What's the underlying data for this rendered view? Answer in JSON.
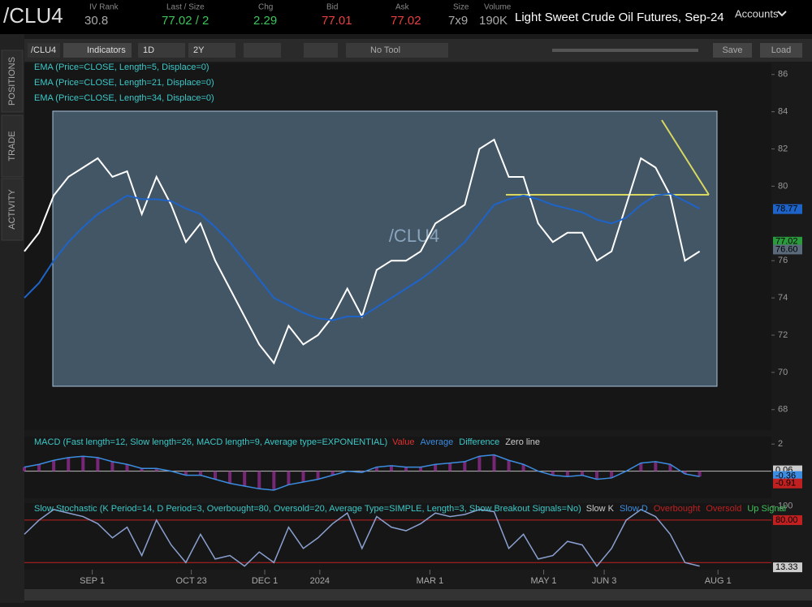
{
  "header": {
    "symbol": "/CLU4",
    "fields": [
      {
        "label": "IV Rank",
        "value": "30.8",
        "color": "#aaaaaa"
      },
      {
        "label": "Last / Size",
        "value": "77.02 / 2",
        "color": "#3ec45a"
      },
      {
        "label": "Chg",
        "value": "2.29",
        "color": "#3ec45a"
      },
      {
        "label": "Bid",
        "value": "77.01",
        "color": "#e84040"
      },
      {
        "label": "Ask",
        "value": "77.02",
        "color": "#e84040"
      },
      {
        "label": "Size",
        "value": "7x9",
        "color": "#aaaaaa"
      },
      {
        "label": "Volume",
        "value": "190K",
        "color": "#aaaaaa"
      }
    ],
    "description": "Light Sweet Crude Oil Futures, Sep-24",
    "accounts": "Accounts"
  },
  "sidebar": [
    "POSITIONS",
    "TRADE",
    "ACTIVITY"
  ],
  "toolbar": {
    "symbol": "/CLU4",
    "indicators": "Indicators",
    "aggregation": "1D",
    "period": "2Y",
    "tool": "No Tool",
    "save": "Save",
    "load": "Load"
  },
  "chart_data": {
    "type": "line",
    "watermark": "/CLU4",
    "x": [
      0,
      8,
      16,
      24,
      32,
      40,
      48,
      56,
      64,
      72,
      80,
      88,
      96,
      104,
      112,
      120,
      128,
      136,
      144,
      152,
      160,
      168,
      176,
      184,
      192,
      200,
      208,
      216,
      224,
      232,
      240,
      248,
      256,
      264,
      272,
      280,
      288,
      296,
      304,
      312,
      320,
      328,
      336,
      344,
      352,
      360,
      368
    ],
    "xlim": [
      0,
      408
    ],
    "xticks": [
      {
        "value": 37,
        "label": "SEP 1"
      },
      {
        "value": 91,
        "label": "OCT 23"
      },
      {
        "value": 131,
        "label": "DEC 1"
      },
      {
        "value": 161,
        "label": "2024"
      },
      {
        "value": 221,
        "label": "MAR 1"
      },
      {
        "value": 283,
        "label": "MAY 1"
      },
      {
        "value": 316,
        "label": "JUN 3"
      },
      {
        "value": 378,
        "label": "AUG 1"
      }
    ],
    "ylim": [
      66.9,
      86.6
    ],
    "yticks": [
      86,
      84,
      82,
      80,
      76,
      74,
      72,
      70,
      68
    ],
    "series": [
      {
        "color": "#ffffff",
        "values": [
          76.5,
          77.5,
          79.5,
          80.5,
          81,
          81.5,
          80.5,
          80.8,
          78.5,
          80.5,
          79,
          77,
          78,
          76,
          74.5,
          73,
          71.5,
          70.5,
          72.5,
          71.5,
          72,
          73,
          74.5,
          73,
          75.5,
          76,
          76,
          76.5,
          78,
          78.5,
          79,
          82,
          82.5,
          80.5,
          80.5,
          78,
          77,
          77.5,
          77.5,
          76,
          76.5,
          79,
          81.5,
          81,
          79.5,
          76,
          76.5
        ]
      },
      {
        "name": "EMA (Price=CLOSE, Length=34, Displace=0)",
        "color": "#1e64c8",
        "values": [
          74,
          74.8,
          76,
          77,
          77.8,
          78.5,
          79,
          79.5,
          79.3,
          79.3,
          79.2,
          78.8,
          78.5,
          77.8,
          77,
          76,
          75,
          74,
          73.6,
          73.2,
          72.9,
          72.8,
          73,
          73,
          73.5,
          74,
          74.5,
          75,
          75.6,
          76.3,
          77,
          78,
          79,
          79.3,
          79.5,
          79.3,
          79,
          78.8,
          78.6,
          78.2,
          78,
          78.3,
          79,
          79.5,
          79.6,
          79.2,
          78.8
        ]
      }
    ],
    "study_labels": [
      "EMA (Price=CLOSE, Length=5, Displace=0)",
      "EMA (Price=CLOSE, Length=21, Displace=0)"
    ],
    "price_tags": [
      {
        "value": 78.77,
        "color": "#1e64c8"
      },
      {
        "value": 77.02,
        "color": "#2a9a3c"
      },
      {
        "value": 76.6,
        "label": "76.60",
        "color": "#5a6a7a"
      }
    ],
    "macd": {
      "label": "MACD (Fast length=12, Slow length=26, MACD length=9, Average type=EXPONENTIAL)",
      "legend": [
        {
          "text": "Value",
          "color": "#e03030"
        },
        {
          "text": "Average",
          "color": "#3c8ce0"
        },
        {
          "text": "Difference",
          "color": "#3cc8c8"
        },
        {
          "text": "Zero line",
          "color": "#cccccc"
        }
      ],
      "ylim": [
        -2,
        2.55
      ],
      "yticks": [
        2
      ],
      "tags": [
        {
          "value": 0.06,
          "color": "#cccccc"
        },
        {
          "value": -0.36,
          "color": "#3c8ce0"
        },
        {
          "value": -0.91,
          "color": "#c02020"
        }
      ],
      "color": "#3c8ce0",
      "values": [
        0.3,
        0.5,
        0.8,
        1.0,
        1.1,
        1.0,
        0.7,
        0.5,
        0.2,
        0.2,
        0,
        -0.3,
        -0.3,
        -0.6,
        -0.9,
        -1.1,
        -1.3,
        -1.4,
        -1.0,
        -0.8,
        -0.6,
        -0.3,
        0,
        -0.1,
        0.3,
        0.4,
        0.3,
        0.3,
        0.5,
        0.6,
        0.7,
        1.1,
        1.2,
        0.8,
        0.5,
        0,
        -0.3,
        -0.4,
        -0.3,
        -0.6,
        -0.5,
        0,
        0.6,
        0.7,
        0.5,
        -0.2,
        -0.4
      ]
    },
    "stoch": {
      "label": "Slow Stochastic (K Period=14, D Period=3, Overbought=80, Oversold=20, Average Type=SIMPLE, Length=3, Show Breakout Signals=No)",
      "legend": [
        {
          "text": "Slow K",
          "color": "#cccccc"
        },
        {
          "text": "Slow D",
          "color": "#3c8ce0"
        },
        {
          "text": "Overbought",
          "color": "#c02020"
        },
        {
          "text": "Oversold",
          "color": "#c02020"
        },
        {
          "text": "Up Signal",
          "color": "#3ec45a"
        }
      ],
      "ylim": [
        10,
        104
      ],
      "yticks": [
        100
      ],
      "levels": [
        80,
        20
      ],
      "tags": [
        {
          "value": 80,
          "label": "80.00",
          "color": "#c02020"
        },
        {
          "value": 13.33,
          "color": "#cccccc"
        }
      ],
      "color": "#8aa0d0",
      "values": [
        60,
        80,
        95,
        90,
        85,
        75,
        55,
        70,
        30,
        80,
        45,
        20,
        60,
        25,
        30,
        15,
        35,
        20,
        70,
        40,
        55,
        75,
        90,
        40,
        85,
        70,
        65,
        75,
        90,
        85,
        88,
        95,
        92,
        40,
        60,
        25,
        30,
        50,
        45,
        15,
        40,
        80,
        95,
        85,
        60,
        20,
        15
      ]
    }
  }
}
